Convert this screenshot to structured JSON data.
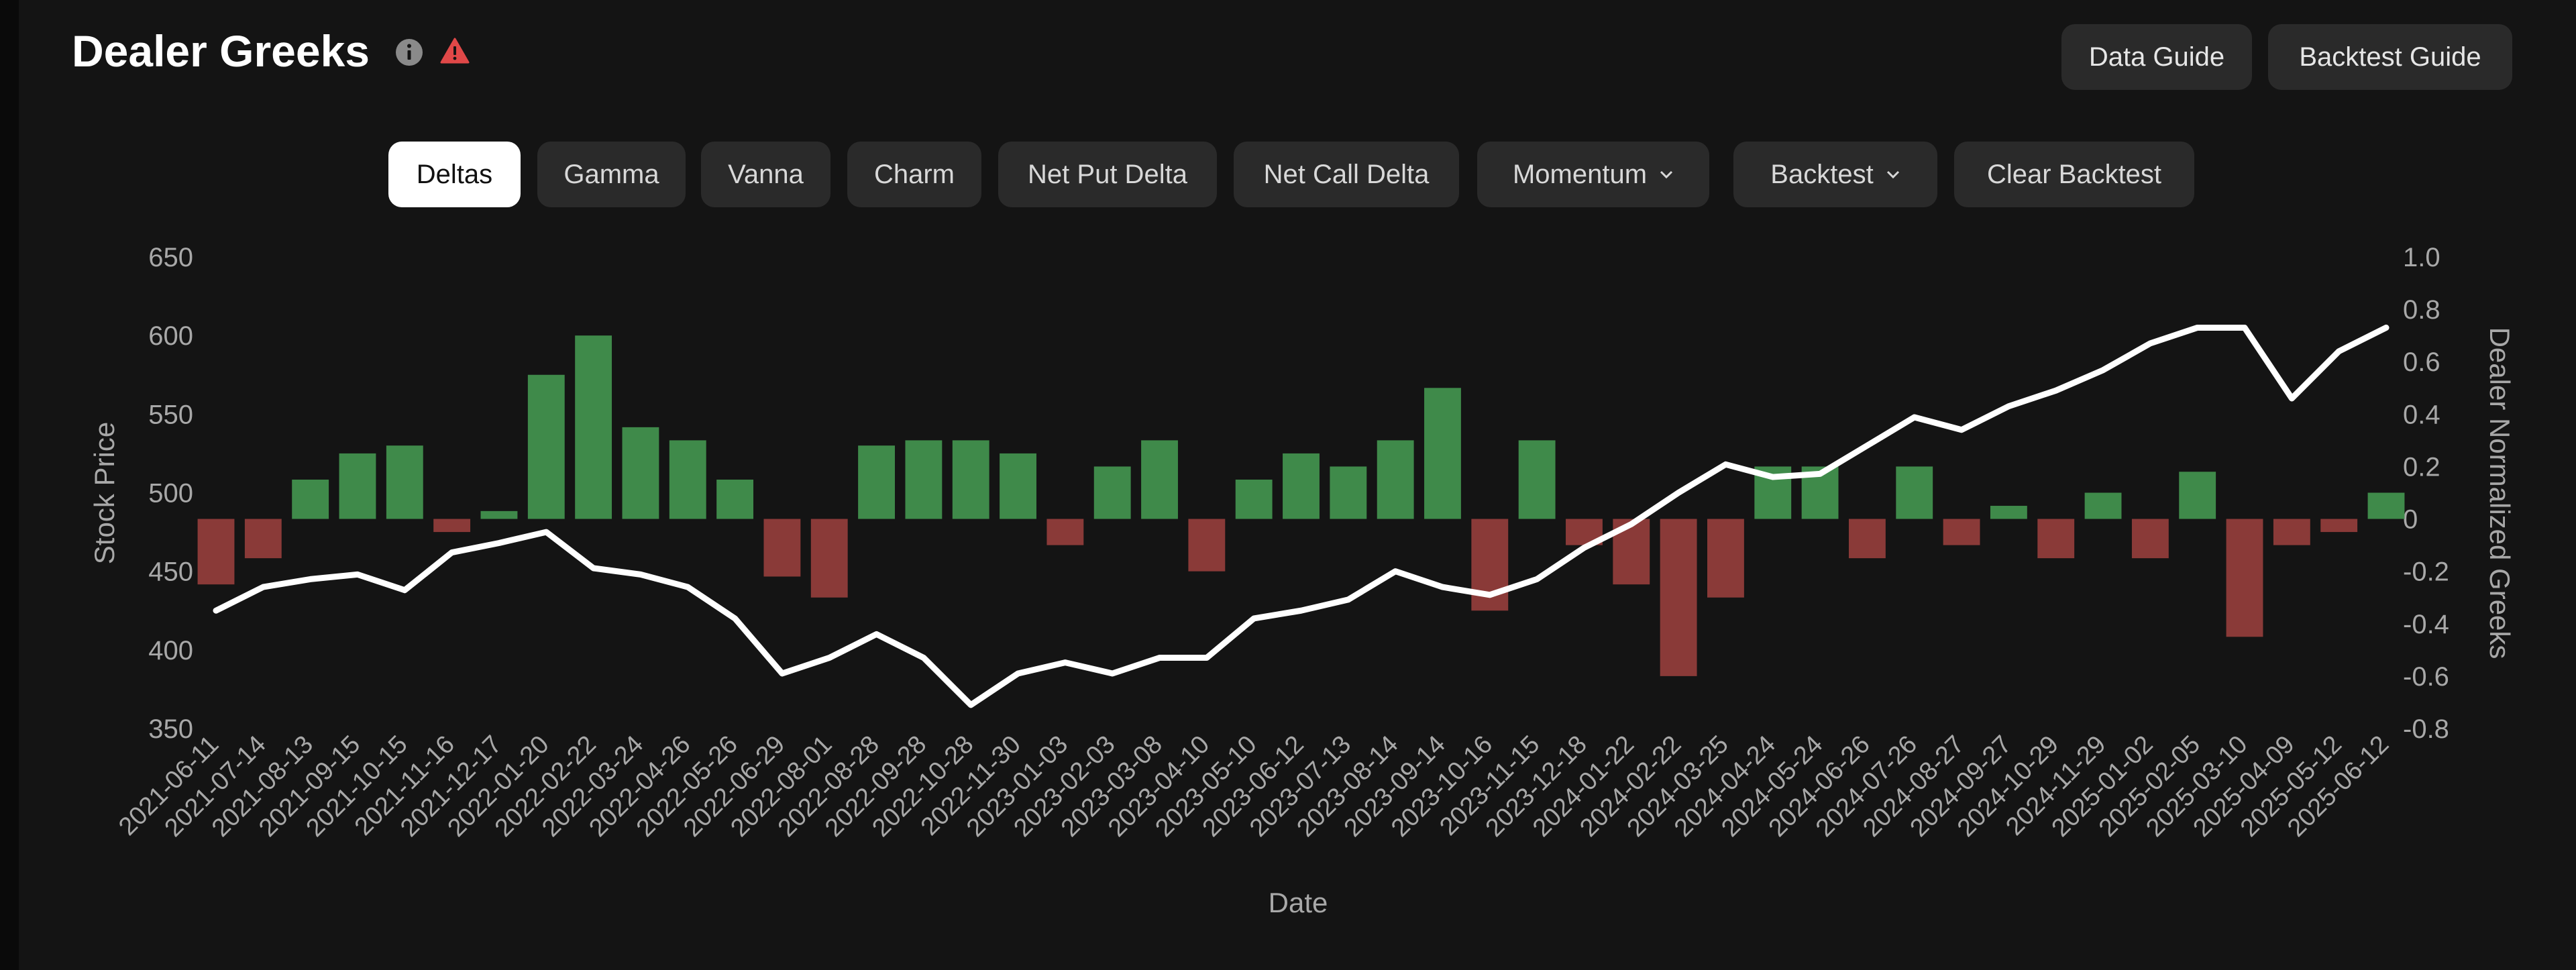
{
  "header": {
    "title": "Dealer Greeks",
    "info_icon": "info-icon",
    "warning_icon": "warning-icon",
    "warning_color": "#e04848",
    "buttons": {
      "data_guide": "Data Guide",
      "backtest_guide": "Backtest Guide"
    }
  },
  "tabs": [
    {
      "label": "Deltas",
      "active": true
    },
    {
      "label": "Gamma"
    },
    {
      "label": "Vanna"
    },
    {
      "label": "Charm"
    },
    {
      "label": "Net Put Delta"
    },
    {
      "label": "Net Call Delta"
    },
    {
      "label": "Momentum",
      "dropdown": true
    },
    {
      "label": "Backtest",
      "dropdown": true
    },
    {
      "label": "Clear Backtest"
    }
  ],
  "colors": {
    "background": "#141414",
    "positive": "#3f8a4a",
    "negative": "#8a3a38",
    "price_line": "#ffffff"
  },
  "chart_data": {
    "type": "bar",
    "xlabel": "Date",
    "ylabel": "Stock Price",
    "y2label": "Dealer Normalized Greeks",
    "ylim": [
      350,
      650
    ],
    "y2lim": [
      -0.8,
      1.0
    ],
    "y_ticks": [
      "650",
      "600",
      "550",
      "500",
      "450",
      "400",
      "350"
    ],
    "y2_ticks": [
      "1.0",
      "0.8",
      "0.6",
      "0.4",
      "0.2",
      "0",
      "-0.2",
      "-0.4",
      "-0.6",
      "-0.8"
    ],
    "x_ticks": [
      "2021-06-11",
      "2021-07-14",
      "2021-08-13",
      "2021-09-15",
      "2021-10-15",
      "2021-11-16",
      "2021-12-17",
      "2022-01-20",
      "2022-02-22",
      "2022-03-24",
      "2022-04-26",
      "2022-05-26",
      "2022-06-29",
      "2022-08-01",
      "2022-08-28",
      "2022-09-28",
      "2022-10-28",
      "2022-11-30",
      "2023-01-03",
      "2023-02-03",
      "2023-03-08",
      "2023-04-10",
      "2023-05-10",
      "2023-06-12",
      "2023-07-13",
      "2023-08-14",
      "2023-09-14",
      "2023-10-16",
      "2023-11-15",
      "2023-12-18",
      "2024-01-22",
      "2024-02-22",
      "2024-03-25",
      "2024-04-24",
      "2024-05-24",
      "2024-06-26",
      "2024-07-26",
      "2024-08-27",
      "2024-09-27",
      "2024-10-29",
      "2024-11-29",
      "2025-01-02",
      "2025-02-05",
      "2025-03-10",
      "2025-04-09",
      "2025-05-12",
      "2025-06-12"
    ],
    "grid": false,
    "series": [
      {
        "name": "Stock Price",
        "type": "line",
        "axis": "left",
        "x": [
          "2021-06-11",
          "2021-07-14",
          "2021-08-13",
          "2021-09-15",
          "2021-10-15",
          "2021-11-16",
          "2021-12-17",
          "2022-01-20",
          "2022-02-22",
          "2022-03-24",
          "2022-04-26",
          "2022-05-26",
          "2022-06-29",
          "2022-08-01",
          "2022-08-28",
          "2022-09-28",
          "2022-10-28",
          "2022-11-30",
          "2023-01-03",
          "2023-02-03",
          "2023-03-08",
          "2023-04-10",
          "2023-05-10",
          "2023-06-12",
          "2023-07-13",
          "2023-08-14",
          "2023-09-14",
          "2023-10-16",
          "2023-11-15",
          "2023-12-18",
          "2024-01-22",
          "2024-02-22",
          "2024-03-25",
          "2024-04-24",
          "2024-05-24",
          "2024-06-26",
          "2024-07-26",
          "2024-08-27",
          "2024-09-27",
          "2024-10-29",
          "2024-11-29",
          "2025-01-02",
          "2025-02-05",
          "2025-03-10",
          "2025-04-09",
          "2025-05-12",
          "2025-06-12"
        ],
        "values": [
          425,
          440,
          445,
          448,
          438,
          462,
          468,
          475,
          452,
          448,
          440,
          420,
          385,
          395,
          410,
          395,
          365,
          385,
          392,
          385,
          395,
          395,
          420,
          425,
          432,
          450,
          440,
          435,
          445,
          465,
          480,
          500,
          518,
          510,
          512,
          530,
          548,
          540,
          555,
          565,
          578,
          595,
          605,
          605,
          560,
          590,
          605
        ]
      },
      {
        "name": "Dealer Normalized Greeks",
        "type": "bar",
        "axis": "right",
        "x": [
          "2021-06-11",
          "2021-07-14",
          "2021-08-13",
          "2021-09-15",
          "2021-10-15",
          "2021-11-16",
          "2021-12-17",
          "2022-01-20",
          "2022-02-22",
          "2022-03-24",
          "2022-04-26",
          "2022-05-26",
          "2022-06-29",
          "2022-08-01",
          "2022-08-28",
          "2022-09-28",
          "2022-10-28",
          "2022-11-30",
          "2023-01-03",
          "2023-02-03",
          "2023-03-08",
          "2023-04-10",
          "2023-05-10",
          "2023-06-12",
          "2023-07-13",
          "2023-08-14",
          "2023-09-14",
          "2023-10-16",
          "2023-11-15",
          "2023-12-18",
          "2024-01-22",
          "2024-02-22",
          "2024-03-25",
          "2024-04-24",
          "2024-05-24",
          "2024-06-26",
          "2024-07-26",
          "2024-08-27",
          "2024-09-27",
          "2024-10-29",
          "2024-11-29",
          "2025-01-02",
          "2025-02-05",
          "2025-03-10",
          "2025-04-09",
          "2025-05-12",
          "2025-06-12"
        ],
        "values": [
          -0.25,
          -0.15,
          0.15,
          0.25,
          0.28,
          -0.05,
          0.03,
          0.55,
          0.7,
          0.35,
          0.3,
          0.15,
          -0.22,
          -0.3,
          0.28,
          0.3,
          0.3,
          0.25,
          -0.1,
          0.2,
          0.3,
          -0.2,
          0.15,
          0.25,
          0.2,
          0.3,
          0.5,
          -0.35,
          0.3,
          -0.1,
          -0.25,
          -0.6,
          -0.3,
          0.2,
          0.2,
          -0.15,
          0.2,
          -0.1,
          0.05,
          -0.15,
          0.1,
          -0.15,
          0.18,
          -0.45,
          -0.1,
          -0.05,
          0.1
        ]
      }
    ]
  }
}
